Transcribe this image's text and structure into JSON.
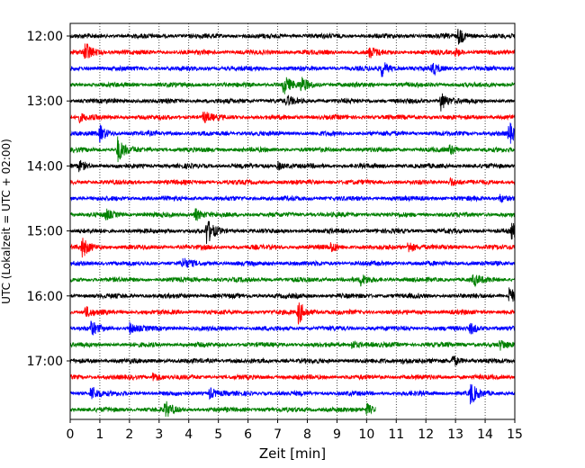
{
  "chart_data": {
    "type": "line",
    "title": "",
    "xlabel": "Zeit  [min]",
    "ylabel": "UTC (Lokalzeit = UTC + 02:00)",
    "xlim": [
      0,
      15
    ],
    "x_ticks": [
      0,
      1,
      2,
      3,
      4,
      5,
      6,
      7,
      8,
      9,
      10,
      11,
      12,
      13,
      14,
      15
    ],
    "x_tick_labels": [
      "0",
      "1",
      "2",
      "3",
      "4",
      "5",
      "6",
      "7",
      "8",
      "9",
      "10",
      "11",
      "12",
      "13",
      "14",
      "15"
    ],
    "y_tick_labels": [
      "12:00",
      "13:00",
      "14:00",
      "15:00",
      "16:00",
      "17:00"
    ],
    "grid": "vertical-dotted",
    "trace_interval_minutes": 15,
    "color_cycle": [
      "#000000",
      "#ff0000",
      "#0000ff",
      "#008000"
    ],
    "traces": [
      {
        "start": "12:00",
        "color": "#000000",
        "end_min": 15,
        "events": [
          [
            13.1,
            1.0
          ]
        ]
      },
      {
        "start": "12:15",
        "color": "#ff0000",
        "end_min": 15,
        "events": [
          [
            0.5,
            1.4
          ],
          [
            10.1,
            0.6
          ],
          [
            13.0,
            0.5
          ]
        ]
      },
      {
        "start": "12:30",
        "color": "#0000ff",
        "end_min": 15,
        "events": [
          [
            10.5,
            1.0
          ],
          [
            12.2,
            0.8
          ]
        ]
      },
      {
        "start": "12:45",
        "color": "#008000",
        "end_min": 15,
        "events": [
          [
            7.2,
            1.2
          ],
          [
            7.8,
            0.9
          ]
        ]
      },
      {
        "start": "13:00",
        "color": "#000000",
        "end_min": 15,
        "events": [
          [
            7.3,
            0.6
          ],
          [
            12.5,
            1.2
          ]
        ]
      },
      {
        "start": "13:15",
        "color": "#ff0000",
        "end_min": 15,
        "events": [
          [
            0.3,
            0.5
          ],
          [
            4.5,
            0.7
          ]
        ]
      },
      {
        "start": "13:30",
        "color": "#0000ff",
        "end_min": 15,
        "events": [
          [
            1.0,
            1.0
          ],
          [
            14.8,
            1.3
          ]
        ]
      },
      {
        "start": "13:45",
        "color": "#008000",
        "end_min": 15,
        "events": [
          [
            1.6,
            1.6
          ],
          [
            12.8,
            0.6
          ]
        ]
      },
      {
        "start": "14:00",
        "color": "#000000",
        "end_min": 15,
        "events": [
          [
            0.3,
            0.6
          ],
          [
            7.0,
            0.5
          ]
        ]
      },
      {
        "start": "14:15",
        "color": "#ff0000",
        "end_min": 15,
        "events": [
          [
            12.8,
            0.6
          ]
        ]
      },
      {
        "start": "14:30",
        "color": "#0000ff",
        "end_min": 15,
        "events": [
          [
            14.5,
            0.5
          ]
        ]
      },
      {
        "start": "14:45",
        "color": "#008000",
        "end_min": 15,
        "events": [
          [
            1.2,
            0.6
          ],
          [
            4.2,
            0.8
          ]
        ]
      },
      {
        "start": "15:00",
        "color": "#000000",
        "end_min": 15,
        "events": [
          [
            4.6,
            1.6
          ],
          [
            14.9,
            1.0
          ]
        ]
      },
      {
        "start": "15:15",
        "color": "#ff0000",
        "end_min": 15,
        "events": [
          [
            0.4,
            1.2
          ],
          [
            8.8,
            0.6
          ],
          [
            11.4,
            0.8
          ]
        ]
      },
      {
        "start": "15:30",
        "color": "#0000ff",
        "end_min": 15,
        "events": [
          [
            3.8,
            0.6
          ]
        ]
      },
      {
        "start": "15:45",
        "color": "#008000",
        "end_min": 15,
        "events": [
          [
            9.8,
            0.6
          ],
          [
            13.6,
            0.7
          ]
        ]
      },
      {
        "start": "16:00",
        "color": "#000000",
        "end_min": 15,
        "events": [
          [
            14.8,
            1.2
          ]
        ]
      },
      {
        "start": "16:15",
        "color": "#ff0000",
        "end_min": 15,
        "events": [
          [
            0.5,
            0.7
          ],
          [
            7.7,
            1.5
          ]
        ]
      },
      {
        "start": "16:30",
        "color": "#0000ff",
        "end_min": 15,
        "events": [
          [
            0.7,
            0.8
          ],
          [
            2.0,
            0.7
          ],
          [
            13.5,
            0.7
          ]
        ]
      },
      {
        "start": "16:45",
        "color": "#008000",
        "end_min": 15,
        "events": [
          [
            9.5,
            0.5
          ],
          [
            14.5,
            0.5
          ]
        ]
      },
      {
        "start": "17:00",
        "color": "#000000",
        "end_min": 15,
        "events": [
          [
            11.2,
            0.5
          ],
          [
            12.9,
            0.7
          ]
        ]
      },
      {
        "start": "17:15",
        "color": "#ff0000",
        "end_min": 15,
        "events": [
          [
            2.8,
            0.6
          ]
        ]
      },
      {
        "start": "17:30",
        "color": "#0000ff",
        "end_min": 15,
        "events": [
          [
            0.7,
            1.0
          ],
          [
            4.7,
            0.7
          ],
          [
            13.5,
            1.3
          ]
        ]
      },
      {
        "start": "17:45",
        "color": "#008000",
        "end_min": 10.3,
        "events": [
          [
            3.2,
            1.0
          ],
          [
            10.0,
            0.7
          ]
        ]
      }
    ]
  }
}
